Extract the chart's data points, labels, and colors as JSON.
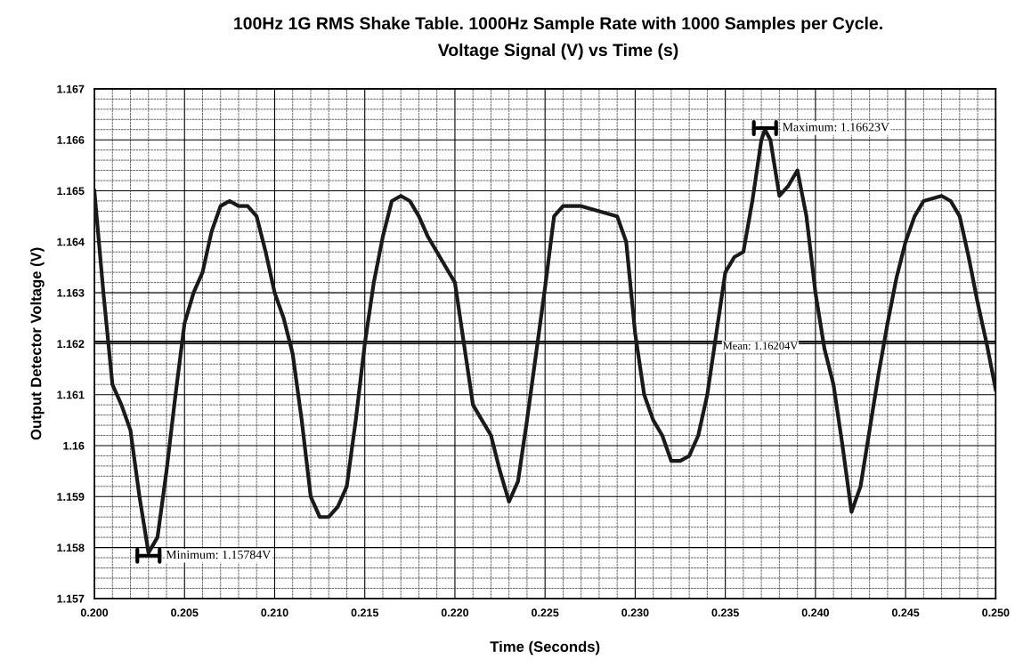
{
  "chart_data": {
    "type": "line",
    "title": "100Hz 1G RMS Shake Table. 1000Hz Sample Rate with 1000 Samples per Cycle.",
    "subtitle": "Voltage Signal (V) vs Time (s)",
    "xlabel": "Time (Seconds)",
    "ylabel": "Output Detector Voltage (V)",
    "x": [
      0.2,
      0.2005,
      0.201,
      0.2015,
      0.202,
      0.2025,
      0.203,
      0.2035,
      0.204,
      0.2045,
      0.205,
      0.2055,
      0.206,
      0.2065,
      0.207,
      0.2075,
      0.208,
      0.2085,
      0.209,
      0.2095,
      0.21,
      0.2105,
      0.211,
      0.2115,
      0.212,
      0.2125,
      0.213,
      0.2135,
      0.214,
      0.2145,
      0.215,
      0.2155,
      0.216,
      0.2165,
      0.217,
      0.2175,
      0.218,
      0.2185,
      0.219,
      0.2195,
      0.22,
      0.2205,
      0.221,
      0.2215,
      0.222,
      0.2225,
      0.223,
      0.2235,
      0.224,
      0.2245,
      0.225,
      0.2255,
      0.226,
      0.227,
      0.228,
      0.229,
      0.2295,
      0.23,
      0.2305,
      0.231,
      0.2315,
      0.232,
      0.2325,
      0.233,
      0.2335,
      0.234,
      0.2345,
      0.235,
      0.2355,
      0.236,
      0.2365,
      0.237,
      0.2372,
      0.2375,
      0.238,
      0.2385,
      0.239,
      0.2395,
      0.24,
      0.2405,
      0.241,
      0.2415,
      0.242,
      0.2425,
      0.243,
      0.2435,
      0.244,
      0.2445,
      0.245,
      0.2455,
      0.246,
      0.247,
      0.2475,
      0.248,
      0.2485,
      0.249,
      0.2495,
      0.25
    ],
    "series": [
      {
        "color": "#1a1a1a",
        "values": [
          1.165,
          1.163,
          1.1612,
          1.1608,
          1.1603,
          1.159,
          1.1579,
          1.1582,
          1.1595,
          1.161,
          1.1624,
          1.163,
          1.1634,
          1.1642,
          1.1647,
          1.1648,
          1.1647,
          1.1647,
          1.1645,
          1.1638,
          1.163,
          1.1625,
          1.1618,
          1.1605,
          1.159,
          1.1586,
          1.1586,
          1.1588,
          1.1592,
          1.1605,
          1.162,
          1.1632,
          1.1641,
          1.1648,
          1.1649,
          1.1648,
          1.1645,
          1.1641,
          1.1638,
          1.1635,
          1.1632,
          1.162,
          1.1608,
          1.1605,
          1.1602,
          1.1595,
          1.1589,
          1.1593,
          1.1605,
          1.1618,
          1.1631,
          1.1645,
          1.1647,
          1.1647,
          1.1646,
          1.1645,
          1.164,
          1.1622,
          1.161,
          1.1605,
          1.1602,
          1.1597,
          1.1597,
          1.1598,
          1.1602,
          1.161,
          1.1622,
          1.1634,
          1.1637,
          1.1638,
          1.1648,
          1.166,
          1.1662,
          1.166,
          1.1649,
          1.1651,
          1.1654,
          1.1645,
          1.163,
          1.1619,
          1.1612,
          1.16,
          1.1587,
          1.1592,
          1.1603,
          1.1614,
          1.1624,
          1.1633,
          1.164,
          1.1645,
          1.1648,
          1.1649,
          1.1648,
          1.1645,
          1.1637,
          1.1628,
          1.162,
          1.1611
        ]
      }
    ],
    "xlim": [
      0.2,
      0.25
    ],
    "ylim": [
      1.157,
      1.167
    ],
    "xticks": [
      {
        "value": 0.2,
        "label": "0.200"
      },
      {
        "value": 0.205,
        "label": "0.205"
      },
      {
        "value": 0.21,
        "label": "0.210"
      },
      {
        "value": 0.215,
        "label": "0.215"
      },
      {
        "value": 0.22,
        "label": "0.220"
      },
      {
        "value": 0.225,
        "label": "0.225"
      },
      {
        "value": 0.23,
        "label": "0.230"
      },
      {
        "value": 0.235,
        "label": "0.235"
      },
      {
        "value": 0.24,
        "label": "0.240"
      },
      {
        "value": 0.245,
        "label": "0.245"
      },
      {
        "value": 0.25,
        "label": "0.250"
      }
    ],
    "yticks": [
      1.157,
      1.158,
      1.159,
      1.16,
      1.161,
      1.162,
      1.163,
      1.164,
      1.165,
      1.166,
      1.167
    ],
    "ref_lines": [
      {
        "axis": "y",
        "value": 1.16204,
        "label": "Mean: 1.16204V",
        "color": "#000000"
      }
    ],
    "annotations": [
      {
        "text": "Minimum: 1.15784V",
        "x": 0.203,
        "y": 1.15784
      },
      {
        "text": "Maximum: 1.16623V",
        "x": 0.2372,
        "y": 1.16623
      }
    ],
    "grid": true,
    "marker": "none",
    "line_style": "solid"
  }
}
